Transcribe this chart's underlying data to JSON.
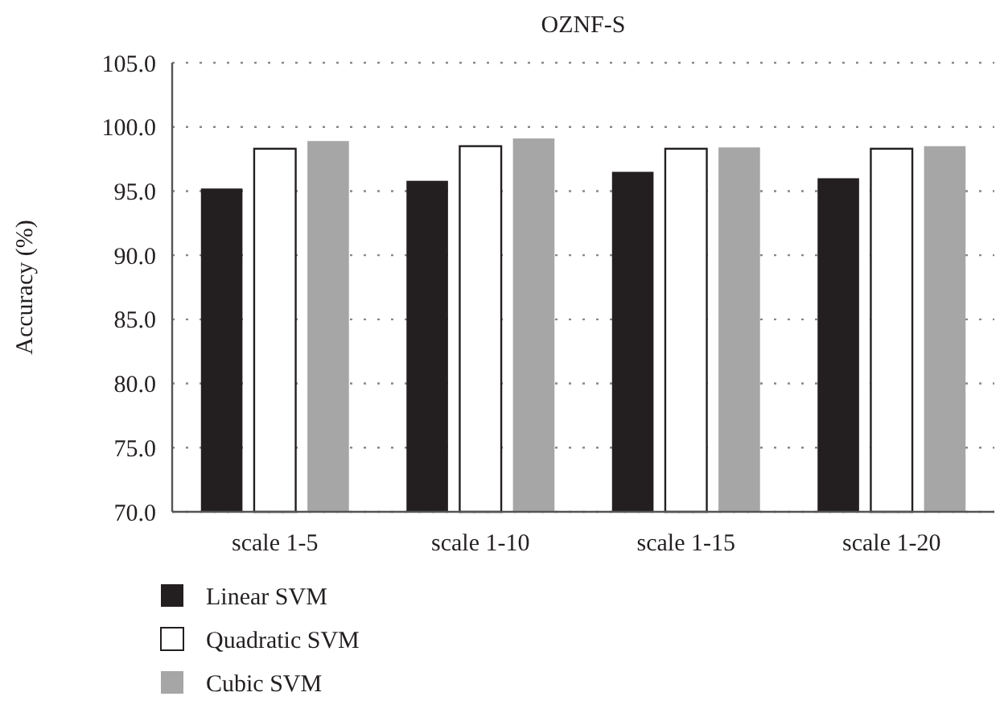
{
  "chart_data": {
    "type": "bar",
    "title": "OZNF-S",
    "ylabel": "Accuracy (%)",
    "categories": [
      "scale 1-5",
      "scale 1-10",
      "scale 1-15",
      "scale 1-20"
    ],
    "series": [
      {
        "name": "Linear SVM",
        "color": "#231f20",
        "values": [
          95.2,
          95.8,
          96.5,
          96.0
        ]
      },
      {
        "name": "Quadratic SVM",
        "color": "#ffffff",
        "values": [
          98.3,
          98.5,
          98.3,
          98.3
        ]
      },
      {
        "name": "Cubic SVM",
        "color": "#a6a6a6",
        "values": [
          98.9,
          99.1,
          98.4,
          98.5
        ]
      }
    ],
    "ylim": [
      70,
      105
    ],
    "yticks": [
      {
        "value": 70,
        "label": "70.0"
      },
      {
        "value": 75,
        "label": "75.0"
      },
      {
        "value": 80,
        "label": "80.0"
      },
      {
        "value": 85,
        "label": "85.0"
      },
      {
        "value": 90,
        "label": "90.0"
      },
      {
        "value": 95,
        "label": "95.0"
      },
      {
        "value": 100,
        "label": "100.0"
      },
      {
        "value": 105,
        "label": "105.0"
      }
    ],
    "grid": "y",
    "legend": "bottom"
  }
}
